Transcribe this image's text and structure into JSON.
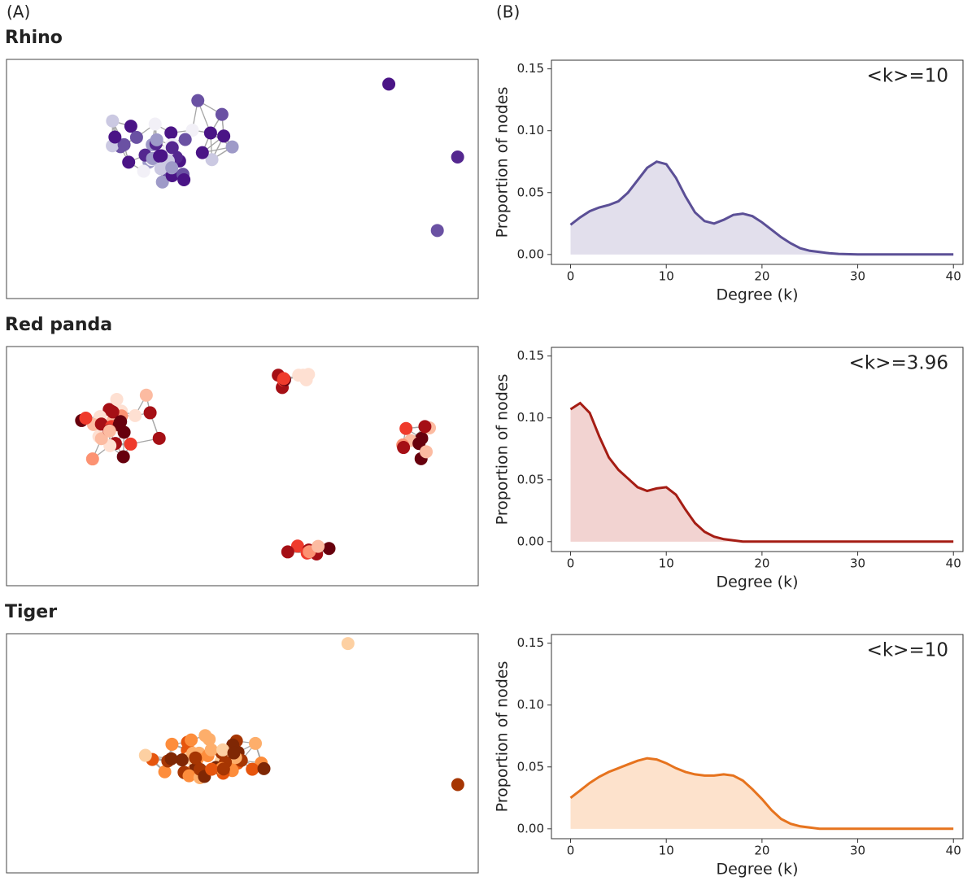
{
  "panel_labels": {
    "a": "(A)",
    "b": "(B)"
  },
  "networks": [
    {
      "title": "Rhino"
    },
    {
      "title": "Red panda"
    },
    {
      "title": "Tiger"
    }
  ],
  "chart_data": [
    {
      "type": "area",
      "annotation": "<k>=10",
      "xlabel": "Degree (k)",
      "ylabel": "Proportion of nodes",
      "color": "#5b4f96",
      "fill_color": "#e2dfec",
      "xlim": [
        -2,
        41
      ],
      "ylim": [
        -0.008,
        0.157
      ],
      "xticks": [
        0,
        10,
        20,
        30,
        40
      ],
      "yticks": [
        {
          "value": 0,
          "label": "0.00"
        },
        0.05,
        {
          "value": 0.1,
          "label": "0.10"
        },
        0.15
      ],
      "x": [
        0,
        1,
        2,
        3,
        4,
        5,
        6,
        7,
        8,
        9,
        10,
        11,
        12,
        13,
        14,
        15,
        16,
        17,
        18,
        19,
        20,
        21,
        22,
        23,
        24,
        25,
        26,
        27,
        28,
        30,
        35,
        40
      ],
      "values": [
        0.024,
        0.03,
        0.035,
        0.038,
        0.04,
        0.043,
        0.05,
        0.06,
        0.07,
        0.075,
        0.073,
        0.062,
        0.047,
        0.034,
        0.027,
        0.025,
        0.028,
        0.032,
        0.033,
        0.031,
        0.026,
        0.02,
        0.014,
        0.009,
        0.005,
        0.003,
        0.002,
        0.001,
        0.0005,
        0,
        0,
        0
      ]
    },
    {
      "type": "area",
      "annotation": "<k>=3.96",
      "xlabel": "Degree (k)",
      "ylabel": "Proportion of nodes",
      "color": "#a51d14",
      "fill_color": "#f2d3d1",
      "xlim": [
        -2,
        41
      ],
      "ylim": [
        -0.008,
        0.157
      ],
      "xticks": [
        0,
        10,
        20,
        30,
        40
      ],
      "yticks": [
        {
          "value": 0,
          "label": "0.00"
        },
        0.05,
        {
          "value": 0.1,
          "label": "0.10"
        },
        0.15
      ],
      "x": [
        0,
        1,
        2,
        3,
        4,
        5,
        6,
        7,
        8,
        9,
        10,
        11,
        12,
        13,
        14,
        15,
        16,
        17,
        18,
        20,
        30,
        40
      ],
      "values": [
        0.107,
        0.112,
        0.104,
        0.085,
        0.068,
        0.058,
        0.051,
        0.044,
        0.041,
        0.043,
        0.044,
        0.038,
        0.026,
        0.015,
        0.008,
        0.004,
        0.002,
        0.001,
        0,
        0,
        0,
        0
      ]
    },
    {
      "type": "area",
      "annotation": "<k>=10",
      "xlabel": "Degree (k)",
      "ylabel": "Proportion of nodes",
      "color": "#e6731e",
      "fill_color": "#fde2cc",
      "xlim": [
        -2,
        41
      ],
      "ylim": [
        -0.008,
        0.157
      ],
      "xticks": [
        0,
        10,
        20,
        30,
        40
      ],
      "yticks": [
        {
          "value": 0,
          "label": "0.00"
        },
        0.05,
        {
          "value": 0.1,
          "label": "0.10"
        },
        0.15
      ],
      "x": [
        0,
        1,
        2,
        3,
        4,
        5,
        6,
        7,
        8,
        9,
        10,
        11,
        12,
        13,
        14,
        15,
        16,
        17,
        18,
        19,
        20,
        21,
        22,
        23,
        24,
        25,
        26,
        30,
        40
      ],
      "values": [
        0.025,
        0.031,
        0.037,
        0.042,
        0.046,
        0.049,
        0.052,
        0.055,
        0.057,
        0.056,
        0.053,
        0.049,
        0.046,
        0.044,
        0.043,
        0.043,
        0.044,
        0.043,
        0.039,
        0.032,
        0.024,
        0.015,
        0.008,
        0.004,
        0.002,
        0.001,
        0,
        0,
        0
      ]
    }
  ]
}
